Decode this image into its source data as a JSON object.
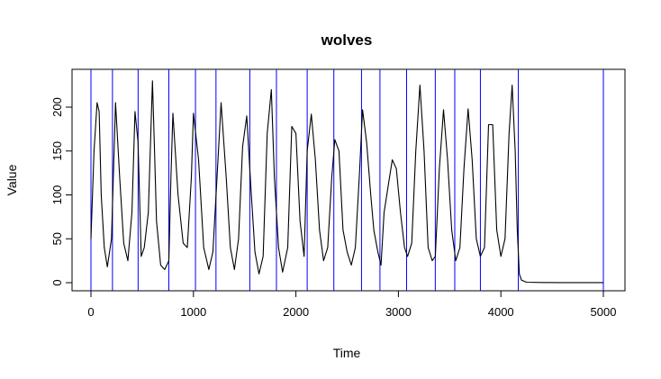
{
  "chart_data": {
    "type": "line",
    "title": "wolves",
    "xlabel": "Time",
    "ylabel": "Value",
    "xlim": [
      0,
      5000
    ],
    "ylim": [
      0,
      230
    ],
    "x_ticks": [
      0,
      1000,
      2000,
      3000,
      4000,
      5000
    ],
    "y_ticks": [
      0,
      50,
      100,
      150,
      200
    ],
    "grid": false,
    "colors": {
      "series": "#000000",
      "changepoints": "#0000ff"
    },
    "series": [
      {
        "x": [
          0,
          30,
          60,
          80,
          100,
          130,
          160,
          200,
          240,
          280,
          320,
          360,
          400,
          430,
          460,
          490,
          520,
          560,
          600,
          620,
          640,
          680,
          720,
          760,
          780,
          800,
          850,
          900,
          940,
          980,
          1000,
          1050,
          1100,
          1150,
          1190,
          1230,
          1270,
          1320,
          1360,
          1400,
          1440,
          1480,
          1520,
          1560,
          1600,
          1640,
          1680,
          1720,
          1760,
          1790,
          1830,
          1870,
          1920,
          1960,
          2000,
          2040,
          2080,
          2110,
          2150,
          2190,
          2230,
          2270,
          2310,
          2350,
          2380,
          2420,
          2460,
          2500,
          2540,
          2580,
          2620,
          2650,
          2690,
          2730,
          2760,
          2800,
          2830,
          2860,
          2900,
          2940,
          2980,
          3020,
          3060,
          3090,
          3130,
          3170,
          3210,
          3250,
          3290,
          3330,
          3360,
          3400,
          3440,
          3480,
          3520,
          3560,
          3600,
          3640,
          3680,
          3720,
          3760,
          3800,
          3840,
          3880,
          3920,
          3960,
          4000,
          4040,
          4080,
          4110,
          4140,
          4160,
          4180,
          4200,
          4250,
          4400,
          4600,
          4800,
          5000
        ],
        "values": [
          50,
          150,
          205,
          195,
          100,
          40,
          18,
          50,
          205,
          120,
          45,
          25,
          80,
          195,
          160,
          30,
          40,
          80,
          230,
          150,
          70,
          20,
          15,
          25,
          120,
          193,
          100,
          45,
          40,
          120,
          193,
          140,
          40,
          15,
          35,
          120,
          205,
          120,
          40,
          15,
          50,
          155,
          190,
          110,
          35,
          10,
          30,
          170,
          220,
          120,
          40,
          12,
          40,
          178,
          170,
          70,
          30,
          150,
          192,
          140,
          60,
          25,
          40,
          120,
          163,
          150,
          60,
          35,
          20,
          40,
          125,
          197,
          160,
          100,
          60,
          35,
          20,
          80,
          110,
          140,
          130,
          80,
          40,
          30,
          45,
          150,
          225,
          150,
          40,
          25,
          30,
          130,
          197,
          140,
          60,
          25,
          40,
          130,
          198,
          140,
          50,
          30,
          40,
          180,
          180,
          60,
          30,
          50,
          170,
          225,
          150,
          60,
          10,
          3,
          0.5,
          0.2,
          0.1,
          0.1,
          0.1
        ]
      }
    ],
    "changepoints": [
      0,
      210,
      460,
      760,
      1020,
      1220,
      1550,
      1810,
      2110,
      2370,
      2640,
      2820,
      3080,
      3360,
      3550,
      3800,
      4170,
      5000
    ]
  }
}
